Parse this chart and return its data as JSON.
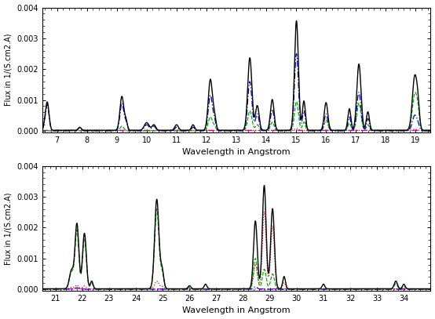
{
  "panel1_xlim": [
    6.5,
    19.5
  ],
  "panel1_ylim": [
    -5e-05,
    0.004
  ],
  "panel1_xticks": [
    7,
    8,
    9,
    10,
    11,
    12,
    13,
    14,
    15,
    16,
    17,
    18,
    19
  ],
  "panel1_yticks": [
    0.0,
    0.001,
    0.002,
    0.003,
    0.004
  ],
  "panel2_xlim": [
    20.5,
    35.0
  ],
  "panel2_ylim": [
    -5e-05,
    0.004
  ],
  "panel2_xticks": [
    21,
    22,
    23,
    24,
    25,
    26,
    27,
    28,
    29,
    30,
    31,
    32,
    33,
    34
  ],
  "panel2_yticks": [
    0.0,
    0.001,
    0.002,
    0.003,
    0.004
  ],
  "xlabel": "Wavelength in Angstrom",
  "ylabel": "Flux in 1/(S.cm2.A)",
  "color_total": "#000000",
  "color_kT1": "#dd0000",
  "color_kT2": "#00aa00",
  "color_kT3": "#0000cc",
  "color_kT4": "#cc00cc",
  "bg_color": "#ffffff"
}
